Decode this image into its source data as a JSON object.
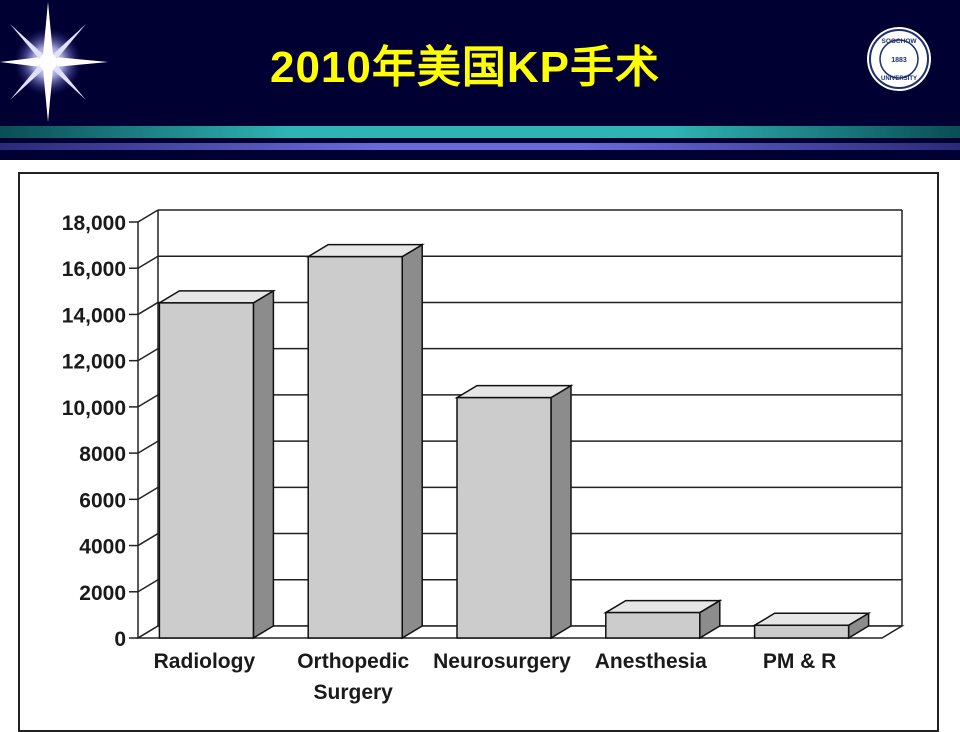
{
  "slide": {
    "title": "2010年美国KP手术"
  },
  "logo": {
    "icon": "university-seal-icon",
    "text_top": "SOOCHOW",
    "text_bottom": "UNIVERSITY",
    "year": "1883"
  },
  "colors": {
    "header_bg": "#000033",
    "title": "#ffff00",
    "stripe_teal": "#2aa7a7",
    "stripe_purple": "#5b5bc8",
    "bar_face": "#cccccc",
    "bar_side": "#8c8c8c",
    "bar_top": "#e6e6e6"
  },
  "chart_data": {
    "type": "bar",
    "title": "",
    "xlabel": "",
    "ylabel": "",
    "categories": [
      "Radiology",
      "Orthopedic Surgery",
      "Neurosurgery",
      "Anesthesia",
      "PM & R"
    ],
    "category_lines": [
      [
        "Radiology"
      ],
      [
        "Orthopedic",
        "Surgery"
      ],
      [
        "Neurosurgery"
      ],
      [
        "Anesthesia"
      ],
      [
        "PM & R"
      ]
    ],
    "values": [
      14500,
      16500,
      10400,
      1100,
      550
    ],
    "ylim": [
      0,
      18000
    ],
    "yticks": [
      0,
      2000,
      4000,
      6000,
      8000,
      10000,
      12000,
      14000,
      16000,
      18000
    ],
    "ytick_labels": [
      "0",
      "2000",
      "4000",
      "6000",
      "8000",
      "10,000",
      "12,000",
      "14,000",
      "16,000",
      "18,000"
    ],
    "grid": true,
    "style": "3d-bar"
  }
}
